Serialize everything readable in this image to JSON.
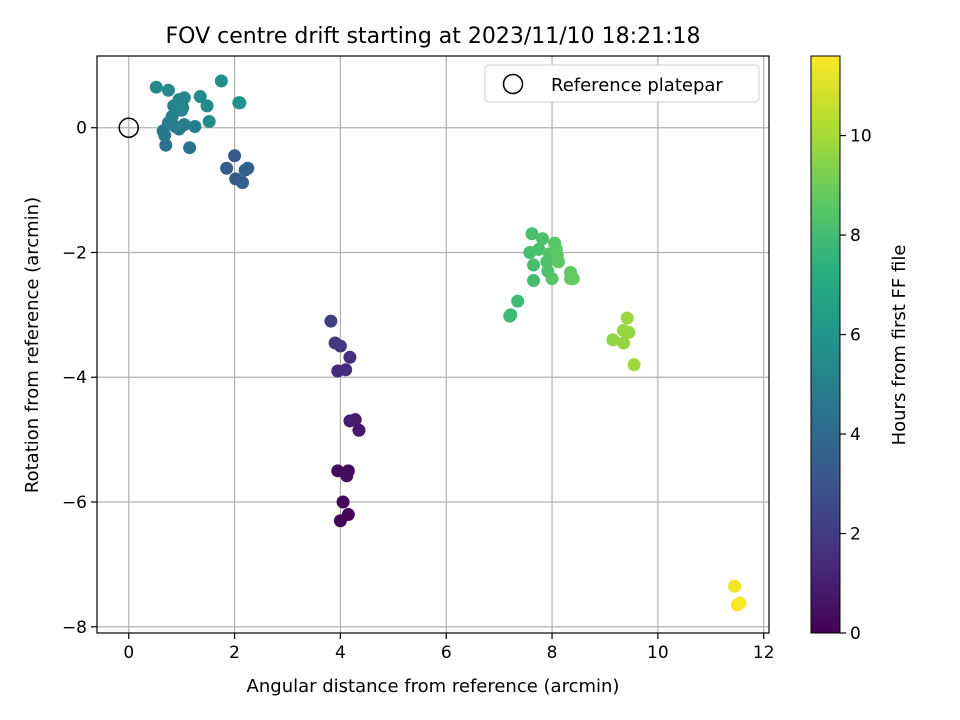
{
  "chart_data": {
    "type": "scatter",
    "title": "FOV centre drift starting at 2023/11/10 18:21:18",
    "xlabel": "Angular distance from reference (arcmin)",
    "ylabel": "Rotation from reference (arcmin)",
    "xlim": [
      -0.6,
      12.1
    ],
    "ylim": [
      -8.1,
      1.15
    ],
    "xticks": [
      0,
      2,
      4,
      6,
      8,
      10,
      12
    ],
    "yticks": [
      0,
      -2,
      -4,
      -6,
      -8
    ],
    "grid": true,
    "legend": {
      "placement": "top-right",
      "entries": [
        {
          "label": "Reference platepar",
          "marker": "open-circle"
        }
      ]
    },
    "colorbar": {
      "label": "Hours from first FF file",
      "range": [
        0,
        11.6
      ],
      "ticks": [
        0,
        2,
        4,
        6,
        8,
        10
      ],
      "colormap": "viridis"
    },
    "reference_point": {
      "x": 0,
      "y": 0
    },
    "points": [
      {
        "x": 4.0,
        "y": -6.3,
        "hours": 0.1
      },
      {
        "x": 4.15,
        "y": -6.2,
        "hours": 0.15
      },
      {
        "x": 4.05,
        "y": -6.0,
        "hours": 0.2
      },
      {
        "x": 3.95,
        "y": -5.5,
        "hours": 0.25
      },
      {
        "x": 4.15,
        "y": -5.5,
        "hours": 0.3
      },
      {
        "x": 4.12,
        "y": -5.58,
        "hours": 0.35
      },
      {
        "x": 4.35,
        "y": -4.85,
        "hours": 0.8
      },
      {
        "x": 4.28,
        "y": -4.68,
        "hours": 0.85
      },
      {
        "x": 4.18,
        "y": -4.7,
        "hours": 0.9
      },
      {
        "x": 3.95,
        "y": -3.9,
        "hours": 1.4
      },
      {
        "x": 4.1,
        "y": -3.88,
        "hours": 1.45
      },
      {
        "x": 4.18,
        "y": -3.68,
        "hours": 1.5
      },
      {
        "x": 3.9,
        "y": -3.45,
        "hours": 1.9
      },
      {
        "x": 4.0,
        "y": -3.5,
        "hours": 1.95
      },
      {
        "x": 3.82,
        "y": -3.1,
        "hours": 2.1
      },
      {
        "x": 1.85,
        "y": -0.65,
        "hours": 3.3
      },
      {
        "x": 2.0,
        "y": -0.45,
        "hours": 3.3
      },
      {
        "x": 2.02,
        "y": -0.82,
        "hours": 3.45
      },
      {
        "x": 2.15,
        "y": -0.88,
        "hours": 3.5
      },
      {
        "x": 2.2,
        "y": -0.68,
        "hours": 3.55
      },
      {
        "x": 2.25,
        "y": -0.65,
        "hours": 3.6
      },
      {
        "x": 0.7,
        "y": -0.28,
        "hours": 4.3
      },
      {
        "x": 1.15,
        "y": -0.32,
        "hours": 4.4
      },
      {
        "x": 0.65,
        "y": -0.05,
        "hours": 4.6
      },
      {
        "x": 0.68,
        "y": -0.12,
        "hours": 4.7
      },
      {
        "x": 0.75,
        "y": 0.08,
        "hours": 4.75
      },
      {
        "x": 0.88,
        "y": 0.02,
        "hours": 4.8
      },
      {
        "x": 0.95,
        "y": -0.02,
        "hours": 4.85
      },
      {
        "x": 1.05,
        "y": 0.05,
        "hours": 4.9
      },
      {
        "x": 1.25,
        "y": 0.02,
        "hours": 4.95
      },
      {
        "x": 0.82,
        "y": 0.18,
        "hours": 5.0
      },
      {
        "x": 0.85,
        "y": 0.35,
        "hours": 5.05
      },
      {
        "x": 1.0,
        "y": 0.28,
        "hours": 5.1
      },
      {
        "x": 0.95,
        "y": 0.45,
        "hours": 5.2
      },
      {
        "x": 1.05,
        "y": 0.48,
        "hours": 5.25
      },
      {
        "x": 1.02,
        "y": 0.32,
        "hours": 5.3
      },
      {
        "x": 0.52,
        "y": 0.65,
        "hours": 5.4
      },
      {
        "x": 0.75,
        "y": 0.6,
        "hours": 5.45
      },
      {
        "x": 1.35,
        "y": 0.5,
        "hours": 5.5
      },
      {
        "x": 1.48,
        "y": 0.35,
        "hours": 5.6
      },
      {
        "x": 1.52,
        "y": 0.1,
        "hours": 5.65
      },
      {
        "x": 1.75,
        "y": 0.75,
        "hours": 5.75
      },
      {
        "x": 2.08,
        "y": 0.4,
        "hours": 5.8
      },
      {
        "x": 2.1,
        "y": 0.4,
        "hours": 5.85
      },
      {
        "x": 7.2,
        "y": -3.02,
        "hours": 7.8
      },
      {
        "x": 7.22,
        "y": -3.0,
        "hours": 7.85
      },
      {
        "x": 7.35,
        "y": -2.78,
        "hours": 7.9
      },
      {
        "x": 7.65,
        "y": -2.45,
        "hours": 8.0
      },
      {
        "x": 7.65,
        "y": -2.2,
        "hours": 8.05
      },
      {
        "x": 7.58,
        "y": -2.0,
        "hours": 8.1
      },
      {
        "x": 7.62,
        "y": -1.7,
        "hours": 8.15
      },
      {
        "x": 7.75,
        "y": -1.95,
        "hours": 8.2
      },
      {
        "x": 7.82,
        "y": -1.78,
        "hours": 8.25
      },
      {
        "x": 7.9,
        "y": -2.15,
        "hours": 8.3
      },
      {
        "x": 7.92,
        "y": -2.3,
        "hours": 8.35
      },
      {
        "x": 7.95,
        "y": -2.02,
        "hours": 8.4
      },
      {
        "x": 8.0,
        "y": -2.42,
        "hours": 8.45
      },
      {
        "x": 8.05,
        "y": -1.85,
        "hours": 8.5
      },
      {
        "x": 8.08,
        "y": -1.95,
        "hours": 8.55
      },
      {
        "x": 8.1,
        "y": -2.05,
        "hours": 8.6
      },
      {
        "x": 8.12,
        "y": -2.15,
        "hours": 8.65
      },
      {
        "x": 8.35,
        "y": -2.32,
        "hours": 8.7
      },
      {
        "x": 8.35,
        "y": -2.42,
        "hours": 8.75
      },
      {
        "x": 8.4,
        "y": -2.42,
        "hours": 8.8
      },
      {
        "x": 9.15,
        "y": -3.4,
        "hours": 9.6
      },
      {
        "x": 9.35,
        "y": -3.45,
        "hours": 9.65
      },
      {
        "x": 9.35,
        "y": -3.25,
        "hours": 9.7
      },
      {
        "x": 9.45,
        "y": -3.28,
        "hours": 9.75
      },
      {
        "x": 9.42,
        "y": -3.05,
        "hours": 9.8
      },
      {
        "x": 9.55,
        "y": -3.8,
        "hours": 9.9
      },
      {
        "x": 11.45,
        "y": -7.35,
        "hours": 11.4
      },
      {
        "x": 11.5,
        "y": -7.65,
        "hours": 11.5
      },
      {
        "x": 11.55,
        "y": -7.62,
        "hours": 11.55
      }
    ]
  }
}
